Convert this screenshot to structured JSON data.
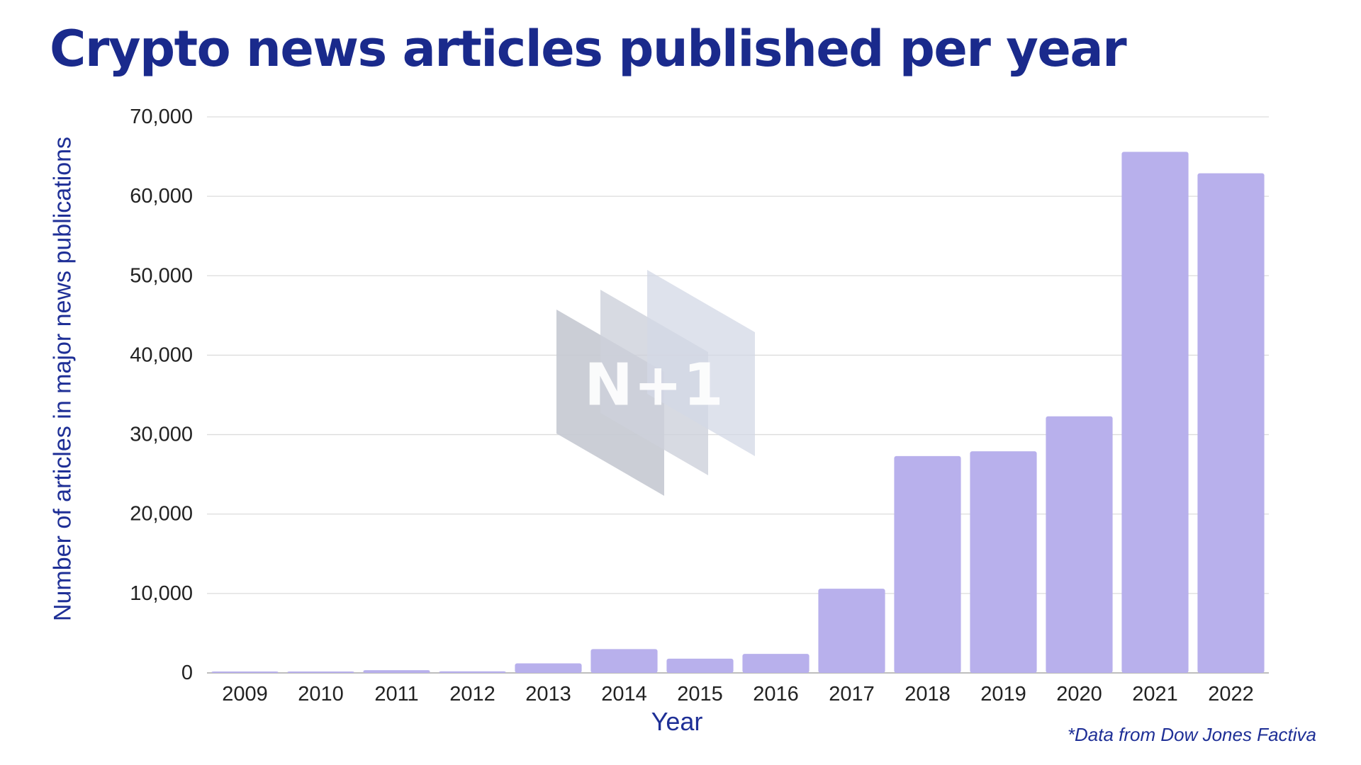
{
  "chart_data": {
    "type": "bar",
    "title": "Crypto news articles published per year",
    "xlabel": "Year",
    "ylabel": "Number of articles in major news publications",
    "categories": [
      "2009",
      "2010",
      "2011",
      "2012",
      "2013",
      "2014",
      "2015",
      "2016",
      "2017",
      "2018",
      "2019",
      "2020",
      "2021",
      "2022"
    ],
    "values": [
      50,
      150,
      350,
      200,
      1200,
      3000,
      1800,
      2400,
      10600,
      27300,
      27900,
      32300,
      65600,
      62900
    ],
    "ylim": [
      0,
      70000
    ],
    "yticks": [
      "0",
      "10,000",
      "20,000",
      "30,000",
      "40,000",
      "50,000",
      "60,000",
      "70,000"
    ],
    "grid": true,
    "bar_color": "#b8b0ec",
    "footnote": "*Data from Dow Jones Factiva"
  },
  "watermark": {
    "text": "N+1"
  },
  "colors": {
    "title": "#1a2a8c",
    "axis_title": "#1e2f96",
    "grid": "#dcdcdc",
    "bar": "#b8b0ec"
  }
}
